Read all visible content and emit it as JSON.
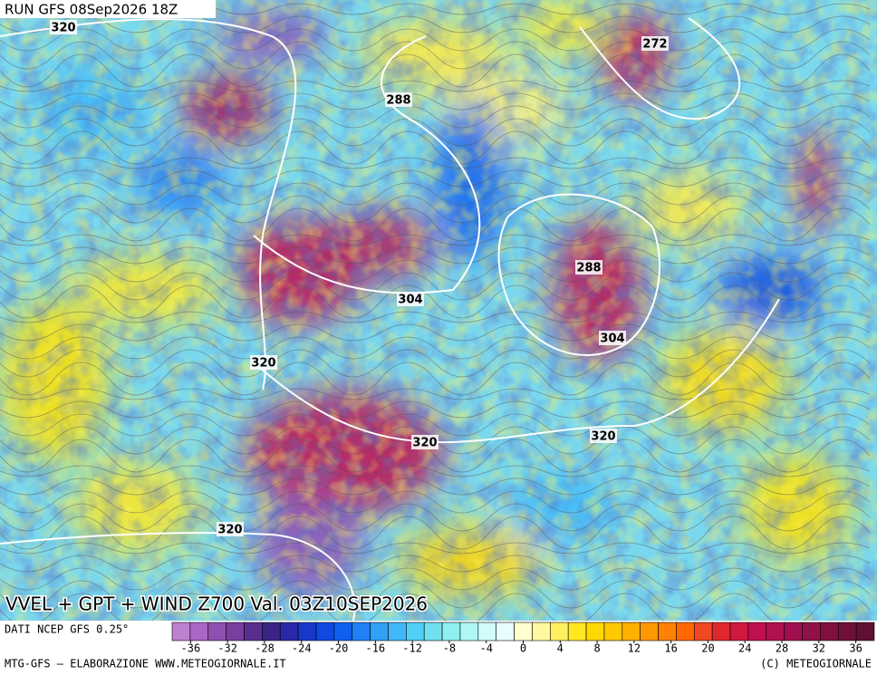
{
  "header": {
    "run": "RUN GFS 08Sep2026 18Z"
  },
  "map": {
    "title": "VVEL + GPT + WIND Z700 Val. 03Z10SEP2026",
    "contour_labels": [
      "320",
      "272",
      "288",
      "288",
      "304",
      "304",
      "320",
      "320",
      "320",
      "320"
    ]
  },
  "footer": {
    "source": "DATI NCEP GFS 0.25°",
    "credit": "MTG-GFS – ELABORAZIONE WWW.METEOGIORNALE.IT",
    "copyright": "(C) METEOGIORNALE"
  },
  "colorbar": {
    "range": [
      -38,
      38
    ],
    "ticks": [
      -36,
      -32,
      -28,
      -24,
      -20,
      -16,
      -12,
      -8,
      -4,
      0,
      4,
      8,
      12,
      16,
      20,
      24,
      28,
      32,
      36
    ],
    "colors": [
      "#c080d0",
      "#a868c4",
      "#9050b0",
      "#7a3e9e",
      "#5a2e8e",
      "#3a2488",
      "#2828a8",
      "#1838c8",
      "#1048e0",
      "#1060f0",
      "#2080f8",
      "#30a0f8",
      "#40b8f8",
      "#50d0f8",
      "#70e0f0",
      "#90f0f0",
      "#b0f8f8",
      "#d0fcfc",
      "#e8fefe",
      "#ffffd0",
      "#fff8a0",
      "#fff060",
      "#ffe820",
      "#ffd800",
      "#ffc800",
      "#ffb000",
      "#ff9800",
      "#ff8000",
      "#ff6800",
      "#f04820",
      "#e02830",
      "#d01840",
      "#c01050",
      "#b01050",
      "#a01050",
      "#901048",
      "#801040",
      "#701038",
      "#601030"
    ]
  }
}
